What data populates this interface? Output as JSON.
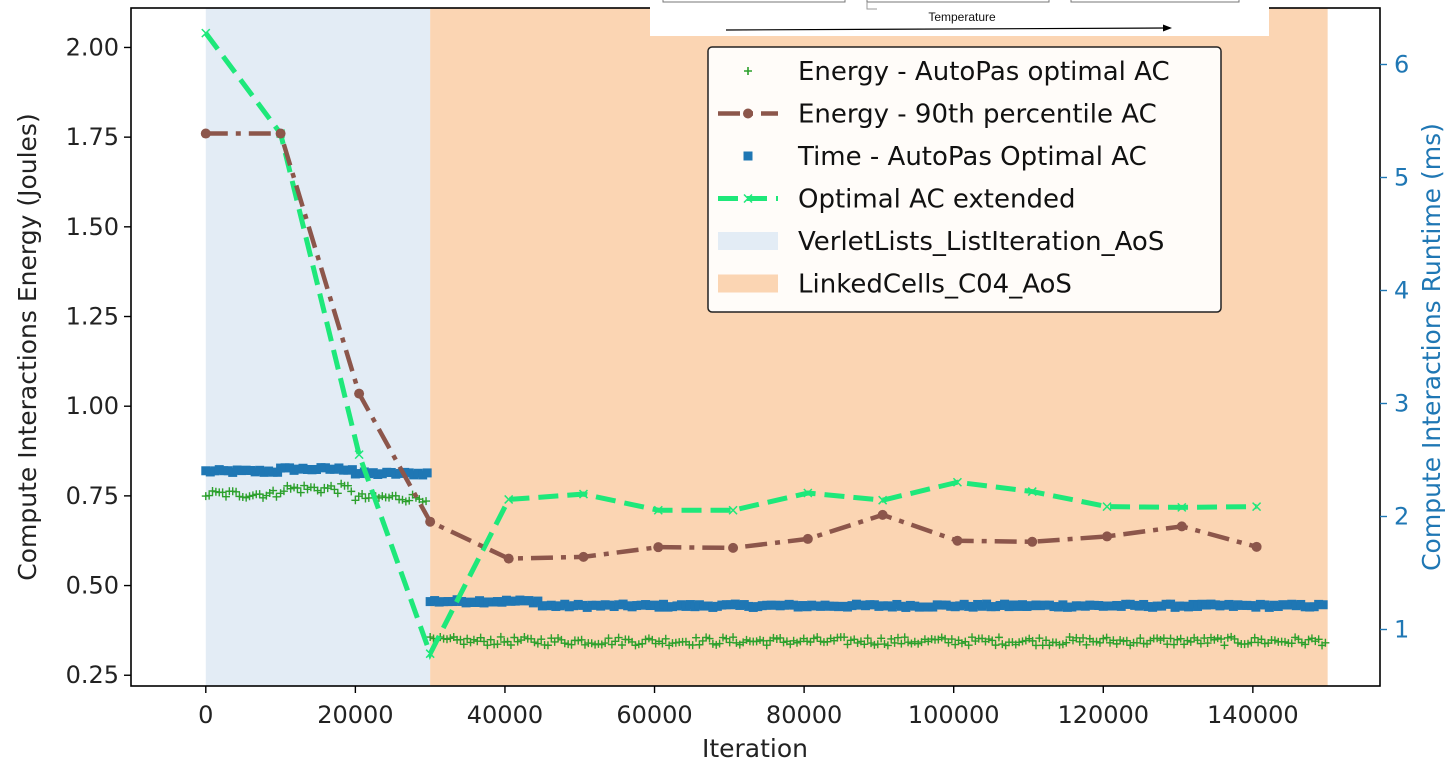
{
  "inset": {
    "label": "Temperature"
  },
  "chart_data": {
    "type": "line",
    "title": "",
    "xlabel": "Iteration",
    "ylabel": "Compute Interactions Energy (Joules)",
    "y2label": "Compute Interactions Runtime (ms)",
    "xlim": [
      -10000,
      157000
    ],
    "ylim": [
      0.22,
      2.11
    ],
    "y2lim": [
      0.5,
      6.5
    ],
    "xticks": [
      0,
      20000,
      40000,
      60000,
      80000,
      100000,
      120000,
      140000
    ],
    "xtick_labels": [
      "0",
      "20000",
      "40000",
      "60000",
      "80000",
      "100000",
      "120000",
      "140000"
    ],
    "yticks": [
      0.25,
      0.5,
      0.75,
      1.0,
      1.25,
      1.5,
      1.75,
      2.0
    ],
    "ytick_labels": [
      "0.25",
      "0.50",
      "0.75",
      "1.00",
      "1.25",
      "1.50",
      "1.75",
      "2.00"
    ],
    "y2ticks": [
      1,
      2,
      3,
      4,
      5,
      6
    ],
    "y2tick_labels": [
      "1",
      "2",
      "3",
      "4",
      "5",
      "6"
    ],
    "grid": false,
    "legend_position": "top-right",
    "colors": {
      "energy_optimal": "#2ca02c",
      "energy_p90": "#8c564b",
      "time_optimal": "#1f77b4",
      "optimal_extended": "#1ee87a",
      "region_verlet": "#e3ecf5",
      "region_linked": "#fbd5b3",
      "right_axis": "#1f77b4"
    },
    "regions": [
      {
        "name": "VerletLists_ListIteration_AoS",
        "x_start": 0,
        "x_end": 30000,
        "color": "#e3ecf5"
      },
      {
        "name": "LinkedCells_C04_AoS",
        "x_start": 30000,
        "x_end": 150000,
        "color": "#fbd5b3"
      }
    ],
    "series": [
      {
        "name": "Energy - AutoPas optimal AC",
        "axis": "left",
        "style": "plus-markers",
        "segments": [
          {
            "x_start": 0,
            "x_end": 10000,
            "level": 0.755,
            "noise": 0.012
          },
          {
            "x_start": 10000,
            "x_end": 20000,
            "level": 0.77,
            "noise": 0.014
          },
          {
            "x_start": 20000,
            "x_end": 30000,
            "level": 0.745,
            "noise": 0.012
          },
          {
            "x_start": 30000,
            "x_end": 150000,
            "level": 0.345,
            "noise": 0.012
          }
        ]
      },
      {
        "name": "Energy - 90th percentile AC",
        "axis": "left",
        "style": "dash-dot",
        "x": [
          0,
          10000,
          20500,
          30000,
          40500,
          50500,
          60500,
          70500,
          80500,
          90500,
          100500,
          110500,
          120500,
          130500,
          140500
        ],
        "values": [
          1.76,
          1.76,
          1.035,
          0.678,
          0.575,
          0.58,
          0.607,
          0.605,
          0.63,
          0.697,
          0.625,
          0.622,
          0.637,
          0.665,
          0.608
        ]
      },
      {
        "name": "Time - AutoPas Optimal AC",
        "axis": "right",
        "style": "square-markers",
        "segments": [
          {
            "x_start": 0,
            "x_end": 10000,
            "level": 2.4
          },
          {
            "x_start": 10000,
            "x_end": 20000,
            "level": 2.42
          },
          {
            "x_start": 20000,
            "x_end": 30000,
            "level": 2.38
          },
          {
            "x_start": 30000,
            "x_end": 45000,
            "level": 1.25
          },
          {
            "x_start": 45000,
            "x_end": 150000,
            "level": 1.21
          }
        ]
      },
      {
        "name": "Optimal AC extended",
        "axis": "left",
        "style": "dashed-x",
        "x": [
          0,
          10000,
          20500,
          30000,
          40500,
          50500,
          60500,
          70500,
          80500,
          90500,
          100500,
          110500,
          120500,
          130500,
          140500
        ],
        "values": [
          2.04,
          1.76,
          0.865,
          0.31,
          0.74,
          0.755,
          0.71,
          0.71,
          0.758,
          0.738,
          0.788,
          0.762,
          0.72,
          0.718,
          0.72
        ]
      }
    ],
    "legend": [
      {
        "label": "Energy - AutoPas optimal AC",
        "kind": "plus",
        "color": "#2ca02c"
      },
      {
        "label": "Energy - 90th percentile AC",
        "kind": "dashdot",
        "color": "#8c564b"
      },
      {
        "label": "Time - AutoPas Optimal AC",
        "kind": "square",
        "color": "#1f77b4"
      },
      {
        "label": "Optimal AC extended",
        "kind": "dashx",
        "color": "#1ee87a"
      },
      {
        "label": "VerletLists_ListIteration_AoS",
        "kind": "patch",
        "color": "#e3ecf5"
      },
      {
        "label": "LinkedCells_C04_AoS",
        "kind": "patch",
        "color": "#fbd5b3"
      }
    ]
  }
}
